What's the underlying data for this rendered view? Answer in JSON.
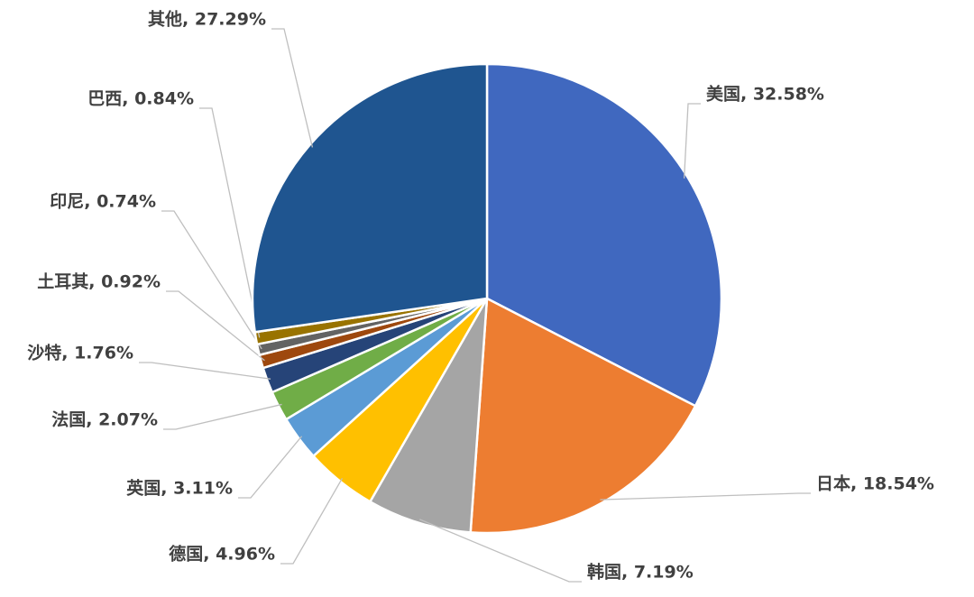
{
  "chart_data": {
    "type": "pie",
    "values": [
      32.58,
      18.54,
      7.19,
      4.96,
      3.11,
      2.07,
      1.76,
      0.92,
      0.74,
      0.84,
      27.29
    ],
    "value_labels": [
      "美国, 32.58%",
      "日本, 18.54%",
      "韩国, 7.19%",
      "德国, 4.96%",
      "英国, 3.11%",
      "法国, 2.07%",
      "沙特, 1.76%",
      "土耳其, 0.92%",
      "印尼, 0.74%",
      "巴西, 0.84%",
      "其他, 27.29%"
    ],
    "colors": [
      "#4068bf",
      "#ed7d31",
      "#a5a5a5",
      "#ffc000",
      "#5b9bd5",
      "#70ad47",
      "#264478",
      "#9e480e",
      "#636363",
      "#997300",
      "#1f5590"
    ]
  }
}
